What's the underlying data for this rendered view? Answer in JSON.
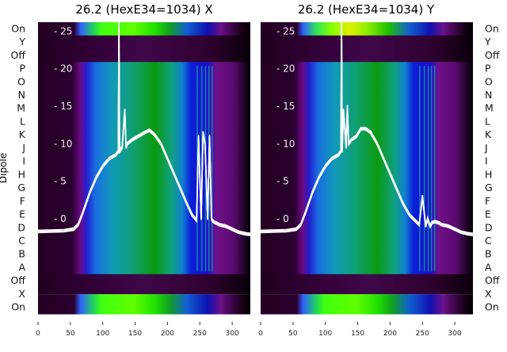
{
  "chart_data": [
    {
      "type": "heatmap",
      "title": "26.2 (HexE34=1034) X",
      "ylabel": "Dipole",
      "row_labels": [
        "On",
        "Y",
        "Off",
        "P",
        "O",
        "N",
        "M",
        "L",
        "K",
        "J",
        "I",
        "H",
        "G",
        "F",
        "E",
        "D",
        "C",
        "B",
        "A",
        "Off",
        "X",
        "On"
      ],
      "xticks": [
        0,
        50,
        100,
        150,
        200,
        250,
        300
      ],
      "xlim": [
        0,
        328
      ],
      "inner_yticks": [
        25,
        20,
        15,
        10,
        5,
        0
      ],
      "inner_ylim": [
        -12.7,
        26.2
      ],
      "line": {
        "color": "#ffffff",
        "x": [
          0,
          40,
          55,
          62,
          70,
          80,
          90,
          100,
          110,
          120,
          124,
          125,
          126,
          130,
          134,
          136,
          138,
          145,
          155,
          165,
          172,
          180,
          190,
          200,
          210,
          220,
          230,
          238,
          245,
          248,
          252,
          255,
          258,
          262,
          265,
          268,
          270,
          273,
          276,
          280,
          290,
          300,
          310,
          320,
          328
        ],
        "y": [
          -1.7,
          -1.6,
          -1.4,
          -0.8,
          1,
          3.5,
          5.5,
          7,
          8,
          8.5,
          9,
          26.5,
          9,
          9.5,
          14.5,
          9.5,
          10,
          10.5,
          11,
          11.5,
          11.8,
          11.2,
          10,
          8,
          6,
          4,
          2,
          0.5,
          -0.2,
          11,
          0,
          11.5,
          10,
          0,
          11,
          0,
          -0.3,
          -0.5,
          -0.6,
          -0.8,
          -1,
          -1.4,
          -1.8,
          -2,
          -2.1
        ]
      }
    },
    {
      "type": "heatmap",
      "title": "26.2 (HexE34=1034) Y",
      "row_labels": [
        "On",
        "Y",
        "Off",
        "P",
        "O",
        "N",
        "M",
        "L",
        "K",
        "J",
        "I",
        "H",
        "G",
        "F",
        "E",
        "D",
        "C",
        "B",
        "A",
        "Off",
        "X",
        "On"
      ],
      "xticks": [
        0,
        50,
        100,
        150,
        200,
        250,
        300
      ],
      "xlim": [
        0,
        328
      ],
      "inner_yticks": [
        25,
        20,
        15,
        10,
        5,
        0
      ],
      "inner_ylim": [
        -12.7,
        26.2
      ],
      "line": {
        "color": "#ffffff",
        "x": [
          0,
          40,
          55,
          62,
          70,
          80,
          90,
          100,
          110,
          120,
          124,
          125,
          126,
          128,
          132,
          134,
          136,
          140,
          148,
          155,
          162,
          170,
          180,
          190,
          200,
          210,
          220,
          230,
          238,
          245,
          250,
          255,
          258,
          262,
          265,
          270,
          276,
          280,
          290,
          300,
          310,
          320,
          328
        ],
        "y": [
          -1.7,
          -1.6,
          -1.4,
          -0.8,
          1,
          3.5,
          5.5,
          7,
          8,
          8.5,
          9,
          26.5,
          9,
          14.5,
          9.5,
          15,
          10,
          10.5,
          11,
          12,
          12,
          11.5,
          10,
          8,
          6,
          4,
          2,
          0.5,
          -0.2,
          -0.8,
          3,
          -1,
          0,
          -1,
          -0.5,
          -0.4,
          -0.6,
          -0.8,
          -1,
          -1.4,
          -1.8,
          -2,
          -2.1
        ]
      }
    }
  ]
}
